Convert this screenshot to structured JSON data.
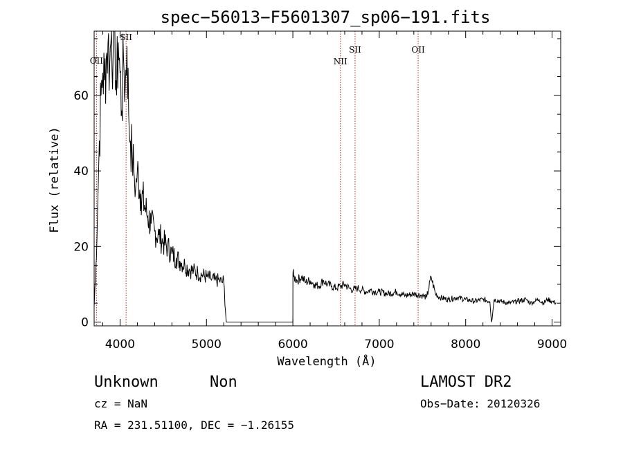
{
  "chart_data": {
    "type": "line",
    "title": "spec−56013−F5601307_sp06−191.fits",
    "xlabel": "Wavelength (Å)",
    "ylabel": "Flux (relative)",
    "xlim": [
      3700,
      9100
    ],
    "ylim": [
      -1,
      77
    ],
    "xticks": [
      4000,
      5000,
      6000,
      7000,
      8000,
      9000
    ],
    "yticks": [
      0,
      20,
      40,
      60
    ],
    "series": [
      {
        "name": "spectrum",
        "x": [
          3700,
          3720,
          3740,
          3760,
          3780,
          3800,
          3820,
          3840,
          3860,
          3880,
          3900,
          3920,
          3940,
          3960,
          3980,
          4000,
          4020,
          4040,
          4060,
          4080,
          4100,
          4120,
          4140,
          4160,
          4180,
          4200,
          4240,
          4280,
          4320,
          4360,
          4400,
          4450,
          4500,
          4550,
          4600,
          4650,
          4700,
          4750,
          4800,
          4850,
          4900,
          4950,
          5000,
          5050,
          5100,
          5150,
          5180,
          5200,
          5220,
          5230,
          5500,
          6000,
          6001,
          6010,
          6050,
          6100,
          6150,
          6200,
          6250,
          6300,
          6350,
          6400,
          6450,
          6500,
          6550,
          6600,
          6650,
          6700,
          6750,
          6800,
          6850,
          6900,
          6950,
          7000,
          7100,
          7200,
          7300,
          7400,
          7500,
          7550,
          7600,
          7650,
          7700,
          7800,
          7900,
          8000,
          8100,
          8200,
          8280,
          8300,
          8330,
          8400,
          8500,
          8600,
          8700,
          8750,
          8800,
          8850,
          8900,
          8950,
          9000,
          9050
        ],
        "y": [
          4,
          15,
          30,
          48,
          60,
          66,
          64,
          70,
          74,
          68,
          77,
          72,
          76,
          60,
          74,
          66,
          56,
          70,
          62,
          73,
          55,
          48,
          44,
          40,
          35,
          40,
          34,
          31,
          28,
          26,
          24,
          23,
          21,
          20,
          18,
          17,
          16,
          15,
          14,
          13.5,
          13,
          12.5,
          12,
          11.5,
          11,
          11,
          10.5,
          11,
          3,
          0,
          0,
          0,
          13,
          12,
          11,
          12,
          10.5,
          11,
          10,
          9.5,
          11,
          10,
          9.5,
          9,
          9.5,
          10,
          9,
          8.5,
          9,
          8.5,
          8,
          8.5,
          8,
          8,
          7.5,
          8,
          7,
          7.5,
          7,
          6.5,
          12,
          7.5,
          6.5,
          6,
          6.5,
          6,
          5.5,
          6,
          5.5,
          0,
          6,
          5.5,
          5,
          5.5,
          6,
          5,
          5.5,
          6,
          5,
          6,
          5.5,
          5
        ]
      }
    ],
    "lines": [
      {
        "label": "OII",
        "x": 3727
      },
      {
        "label": "SII",
        "x": 4070
      },
      {
        "label": "NII",
        "x": 6550
      },
      {
        "label": "SII",
        "x": 6720
      },
      {
        "label": "OII",
        "x": 7450
      }
    ]
  },
  "footer": {
    "class_label": "Unknown",
    "subclass_label": "Non",
    "survey": "LAMOST DR2",
    "cz": "cz = NaN",
    "obs_date": "Obs−Date: 20120326",
    "coords": "RA = 231.51100, DEC =  −1.26155"
  }
}
